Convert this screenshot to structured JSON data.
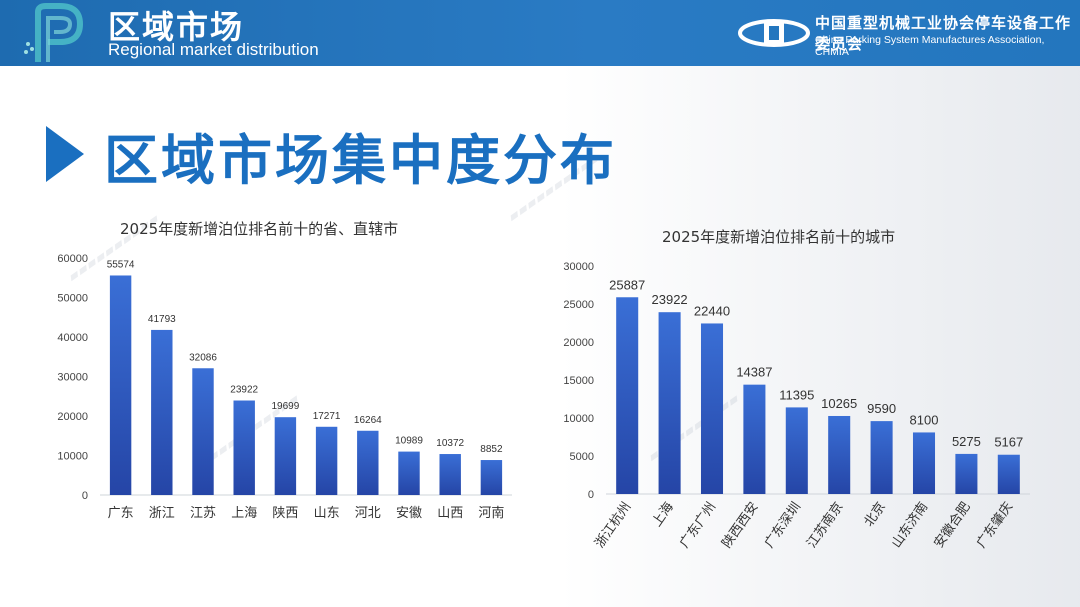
{
  "header": {
    "title": "区域市场",
    "subtitle": "Regional market distribution",
    "org_cn": "中国重型机械工业协会停车设备工作委员会",
    "org_en": "China Parking System Manufactures Association, CHMIA"
  },
  "section": {
    "title": "区域市场集中度分布"
  },
  "colors": {
    "header_blue": "#2376be",
    "accent_blue": "#1a6fc0",
    "bar_top": "#3a6fd6",
    "bar_bottom": "#2545a6"
  },
  "chart_data": [
    {
      "type": "bar",
      "title": "2025年度新增泊位排名前十的省、直辖市",
      "categories": [
        "广东",
        "浙江",
        "江苏",
        "上海",
        "陕西",
        "山东",
        "河北",
        "安徽",
        "山西",
        "河南"
      ],
      "values": [
        55574,
        41793,
        32086,
        23922,
        19699,
        17271,
        16264,
        10989,
        10372,
        8852
      ],
      "ylim": [
        0,
        60000
      ],
      "yticks": [
        0,
        10000,
        20000,
        30000,
        40000,
        50000,
        60000
      ],
      "grid": false,
      "legend": "none"
    },
    {
      "type": "bar",
      "title": "2025年度新增泊位排名前十的城市",
      "categories": [
        "浙江杭州",
        "上海",
        "广东广州",
        "陕西西安",
        "广东深圳",
        "江苏南京",
        "北京",
        "山东济南",
        "安徽合肥",
        "广东肇庆"
      ],
      "values": [
        25887,
        23922,
        22440,
        14387,
        11395,
        10265,
        9590,
        8100,
        5275,
        5167
      ],
      "ylim": [
        0,
        30000
      ],
      "yticks": [
        0,
        5000,
        10000,
        15000,
        20000,
        25000,
        30000
      ],
      "grid": false,
      "legend": "none"
    }
  ]
}
